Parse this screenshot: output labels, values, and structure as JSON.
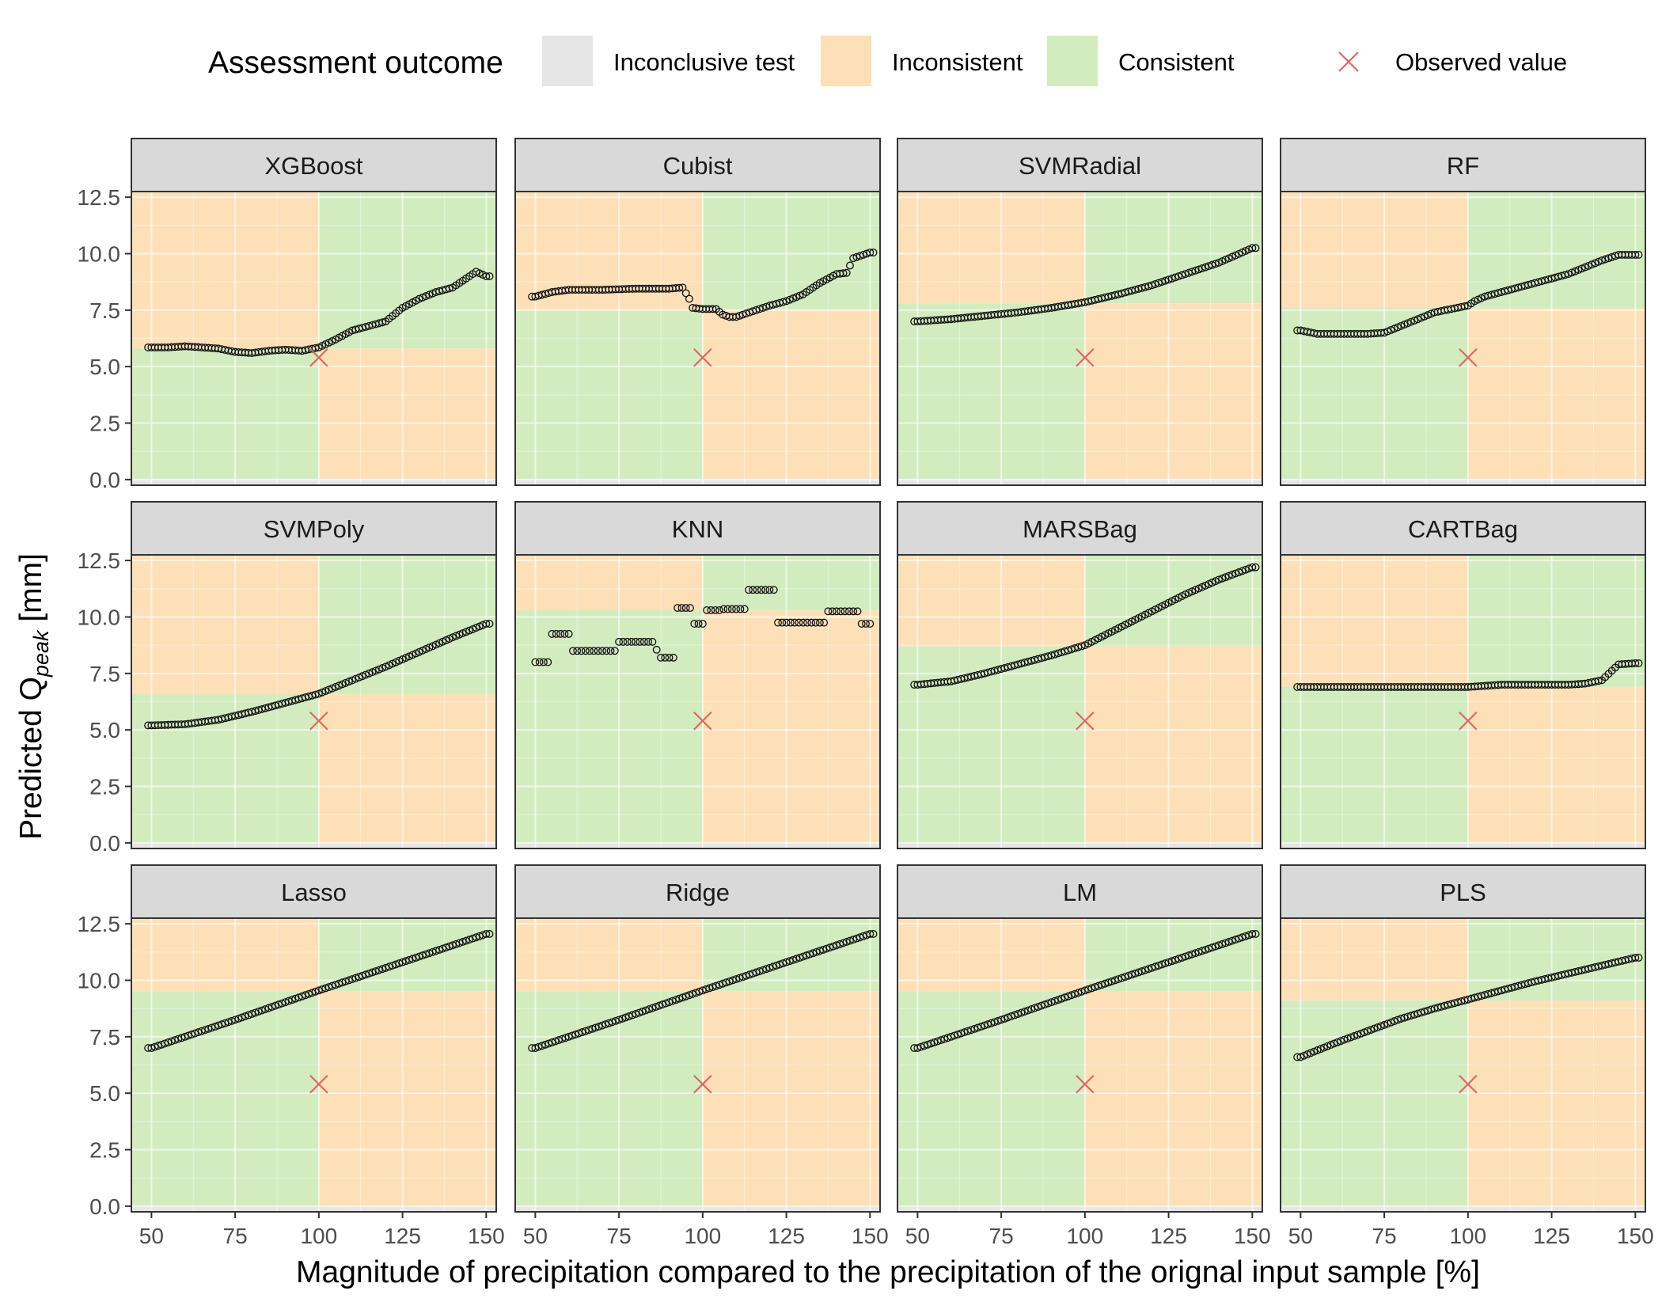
{
  "legend": {
    "title": "Assessment outcome",
    "items": [
      {
        "label": "Inconclusive test",
        "color": "#e6e6e6"
      },
      {
        "label": "Inconsistent",
        "color": "#fde0b8"
      },
      {
        "label": "Consistent",
        "color": "#d2ecbf"
      }
    ],
    "observed_label": "Observed value",
    "observed_color": "#e06666"
  },
  "xlabel": "Magnitude of precipitation compared to the precipitation of the orignal input sample [%]",
  "ylabel_main": "Predicted Q",
  "ylabel_sub": "peak",
  "ylabel_unit": " [mm]",
  "chart_data": {
    "type": "scatter",
    "xlim": [
      44,
      153
    ],
    "ylim": [
      -0.25,
      12.75
    ],
    "x_ticks": [
      50,
      75,
      100,
      125,
      150
    ],
    "y_ticks": [
      0.0,
      2.5,
      5.0,
      7.5,
      10.0,
      12.5
    ],
    "observed": {
      "x": 100,
      "y": 5.4
    },
    "inconclusive_band": [
      -0.25,
      0
    ],
    "panels": [
      {
        "name": "XGBoost",
        "threshold": 5.8,
        "points": [
          [
            50,
            5.85
          ],
          [
            55,
            5.85
          ],
          [
            60,
            5.9
          ],
          [
            65,
            5.85
          ],
          [
            70,
            5.8
          ],
          [
            75,
            5.65
          ],
          [
            80,
            5.6
          ],
          [
            85,
            5.7
          ],
          [
            90,
            5.75
          ],
          [
            95,
            5.7
          ],
          [
            100,
            5.85
          ],
          [
            105,
            6.2
          ],
          [
            110,
            6.6
          ],
          [
            115,
            6.8
          ],
          [
            120,
            7.0
          ],
          [
            125,
            7.6
          ],
          [
            130,
            8.0
          ],
          [
            135,
            8.3
          ],
          [
            140,
            8.5
          ],
          [
            145,
            9.0
          ],
          [
            147,
            9.2
          ],
          [
            150,
            9.0
          ]
        ]
      },
      {
        "name": "Cubist",
        "threshold": 7.5,
        "points": [
          [
            50,
            8.1
          ],
          [
            55,
            8.3
          ],
          [
            60,
            8.4
          ],
          [
            70,
            8.4
          ],
          [
            80,
            8.45
          ],
          [
            90,
            8.45
          ],
          [
            94,
            8.5
          ],
          [
            96,
            8.0
          ],
          [
            97,
            7.6
          ],
          [
            100,
            7.55
          ],
          [
            104,
            7.55
          ],
          [
            106,
            7.3
          ],
          [
            108,
            7.2
          ],
          [
            110,
            7.2
          ],
          [
            115,
            7.45
          ],
          [
            120,
            7.7
          ],
          [
            125,
            7.9
          ],
          [
            130,
            8.2
          ],
          [
            135,
            8.7
          ],
          [
            140,
            9.1
          ],
          [
            143,
            9.15
          ],
          [
            145,
            9.8
          ],
          [
            150,
            10.05
          ]
        ]
      },
      {
        "name": "SVMRadial",
        "threshold": 7.8,
        "points": [
          [
            50,
            7.0
          ],
          [
            60,
            7.1
          ],
          [
            70,
            7.25
          ],
          [
            80,
            7.4
          ],
          [
            90,
            7.6
          ],
          [
            100,
            7.85
          ],
          [
            110,
            8.2
          ],
          [
            120,
            8.6
          ],
          [
            130,
            9.1
          ],
          [
            140,
            9.6
          ],
          [
            150,
            10.25
          ]
        ]
      },
      {
        "name": "RF",
        "threshold": 7.6,
        "points": [
          [
            50,
            6.6
          ],
          [
            55,
            6.45
          ],
          [
            60,
            6.45
          ],
          [
            65,
            6.45
          ],
          [
            70,
            6.45
          ],
          [
            75,
            6.5
          ],
          [
            80,
            6.8
          ],
          [
            85,
            7.1
          ],
          [
            90,
            7.4
          ],
          [
            95,
            7.55
          ],
          [
            100,
            7.7
          ],
          [
            102,
            7.9
          ],
          [
            105,
            8.1
          ],
          [
            110,
            8.3
          ],
          [
            115,
            8.5
          ],
          [
            120,
            8.7
          ],
          [
            125,
            8.9
          ],
          [
            130,
            9.1
          ],
          [
            135,
            9.4
          ],
          [
            140,
            9.7
          ],
          [
            145,
            9.95
          ],
          [
            150,
            9.95
          ]
        ]
      },
      {
        "name": "SVMPoly",
        "threshold": 6.6,
        "points": [
          [
            50,
            5.2
          ],
          [
            60,
            5.25
          ],
          [
            70,
            5.45
          ],
          [
            80,
            5.8
          ],
          [
            90,
            6.2
          ],
          [
            100,
            6.6
          ],
          [
            110,
            7.2
          ],
          [
            120,
            7.8
          ],
          [
            130,
            8.45
          ],
          [
            140,
            9.1
          ],
          [
            150,
            9.7
          ]
        ]
      },
      {
        "name": "KNN",
        "threshold": 10.3,
        "points": [
          [
            50,
            8.0
          ],
          [
            52,
            8.0
          ],
          [
            53,
            9.25
          ],
          [
            57,
            9.25
          ],
          [
            58,
            8.5
          ],
          [
            63,
            8.5
          ],
          [
            64,
            8.5
          ],
          [
            68,
            8.5
          ],
          [
            69,
            8.9
          ],
          [
            72,
            8.9
          ],
          [
            73,
            8.9
          ],
          [
            77,
            8.9
          ],
          [
            79,
            8.2
          ],
          [
            82,
            8.2
          ],
          [
            83,
            10.4
          ],
          [
            86,
            10.4
          ],
          [
            87,
            9.7
          ],
          [
            89,
            9.7
          ],
          [
            90,
            10.3
          ],
          [
            93,
            10.3
          ],
          [
            94,
            10.35
          ],
          [
            99,
            10.35
          ],
          [
            100,
            11.2
          ],
          [
            106,
            11.2
          ],
          [
            107,
            9.75
          ],
          [
            118,
            9.75
          ],
          [
            119,
            10.25
          ],
          [
            126,
            10.25
          ],
          [
            127,
            9.7
          ],
          [
            129,
            9.7
          ]
        ]
      },
      {
        "name": "MARSBag",
        "threshold": 8.7,
        "points": [
          [
            50,
            7.0
          ],
          [
            60,
            7.15
          ],
          [
            70,
            7.5
          ],
          [
            80,
            7.9
          ],
          [
            90,
            8.3
          ],
          [
            100,
            8.75
          ],
          [
            110,
            9.5
          ],
          [
            120,
            10.25
          ],
          [
            130,
            11.0
          ],
          [
            140,
            11.65
          ],
          [
            150,
            12.2
          ]
        ]
      },
      {
        "name": "CARTBag",
        "threshold": 6.9,
        "points": [
          [
            50,
            6.9
          ],
          [
            60,
            6.9
          ],
          [
            70,
            6.9
          ],
          [
            80,
            6.9
          ],
          [
            90,
            6.9
          ],
          [
            100,
            6.9
          ],
          [
            105,
            6.95
          ],
          [
            110,
            7.0
          ],
          [
            120,
            7.0
          ],
          [
            130,
            7.0
          ],
          [
            135,
            7.05
          ],
          [
            140,
            7.2
          ],
          [
            145,
            7.9
          ],
          [
            150,
            7.95
          ]
        ]
      },
      {
        "name": "Lasso",
        "threshold": 9.5,
        "points": [
          [
            50,
            7.0
          ],
          [
            75,
            8.25
          ],
          [
            100,
            9.55
          ],
          [
            125,
            10.8
          ],
          [
            150,
            12.05
          ]
        ]
      },
      {
        "name": "Ridge",
        "threshold": 9.5,
        "points": [
          [
            50,
            7.0
          ],
          [
            75,
            8.25
          ],
          [
            100,
            9.55
          ],
          [
            125,
            10.8
          ],
          [
            150,
            12.05
          ]
        ]
      },
      {
        "name": "LM",
        "threshold": 9.5,
        "points": [
          [
            50,
            7.0
          ],
          [
            75,
            8.25
          ],
          [
            100,
            9.55
          ],
          [
            125,
            10.8
          ],
          [
            150,
            12.05
          ]
        ]
      },
      {
        "name": "PLS",
        "threshold": 9.1,
        "points": [
          [
            50,
            6.6
          ],
          [
            60,
            7.2
          ],
          [
            70,
            7.75
          ],
          [
            80,
            8.3
          ],
          [
            90,
            8.75
          ],
          [
            100,
            9.15
          ],
          [
            110,
            9.55
          ],
          [
            120,
            9.95
          ],
          [
            130,
            10.3
          ],
          [
            140,
            10.65
          ],
          [
            150,
            11.0
          ]
        ]
      }
    ]
  }
}
